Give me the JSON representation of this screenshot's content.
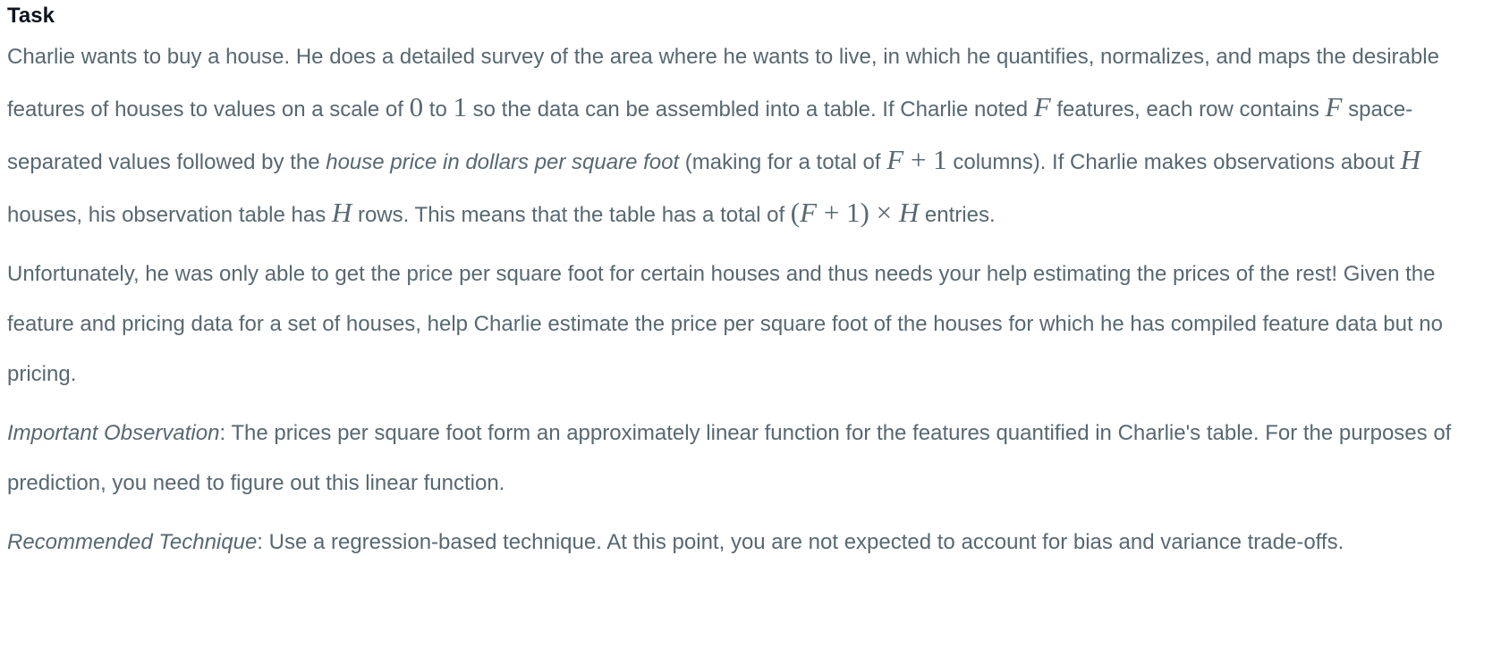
{
  "task": {
    "heading": "Task",
    "p1": {
      "s1": "Charlie wants to buy a house. He does a detailed survey of the area where he wants to live, in which he quantifies, normalizes, and maps the desirable features of houses to values on a scale of ",
      "m_zero": "0",
      "s2": " to ",
      "m_one": "1",
      "s3": " so the data can be assembled into a table. If Charlie noted ",
      "m_F1": "F",
      "s4": " features, each row contains ",
      "m_F2": "F",
      "s5": " space-separated values followed by the ",
      "em": "house price in dollars per square foot",
      "s6": " (making for a total of ",
      "m_F3": "F",
      "m_plus1": " + 1",
      "s7": " columns). If Charlie makes observations about ",
      "m_H1": "H",
      "s8": " houses, his observation table has ",
      "m_H2": "H",
      "s9": " rows. This means that the table has a total of ",
      "m_open": "(",
      "m_F4": "F",
      "m_plus2": " + 1) × ",
      "m_H3": "H",
      "s10": " entries."
    },
    "p2": "Unfortunately, he was only able to get the price per square foot for certain houses and thus needs your help estimating the prices of the rest! Given the feature and pricing data for a set of houses, help Charlie estimate the price per square foot of the houses for which he has compiled feature data but no pricing.",
    "p3": {
      "em": "Important Observation",
      "text": ": The prices per square foot form an approximately linear function for the features quantified in Charlie's table. For the purposes of prediction, you need to figure out this linear function."
    },
    "p4": {
      "em": "Recommended Technique",
      "text": ": Use a regression-based technique. At this point, you are not expected to account for bias and variance trade-offs."
    }
  }
}
